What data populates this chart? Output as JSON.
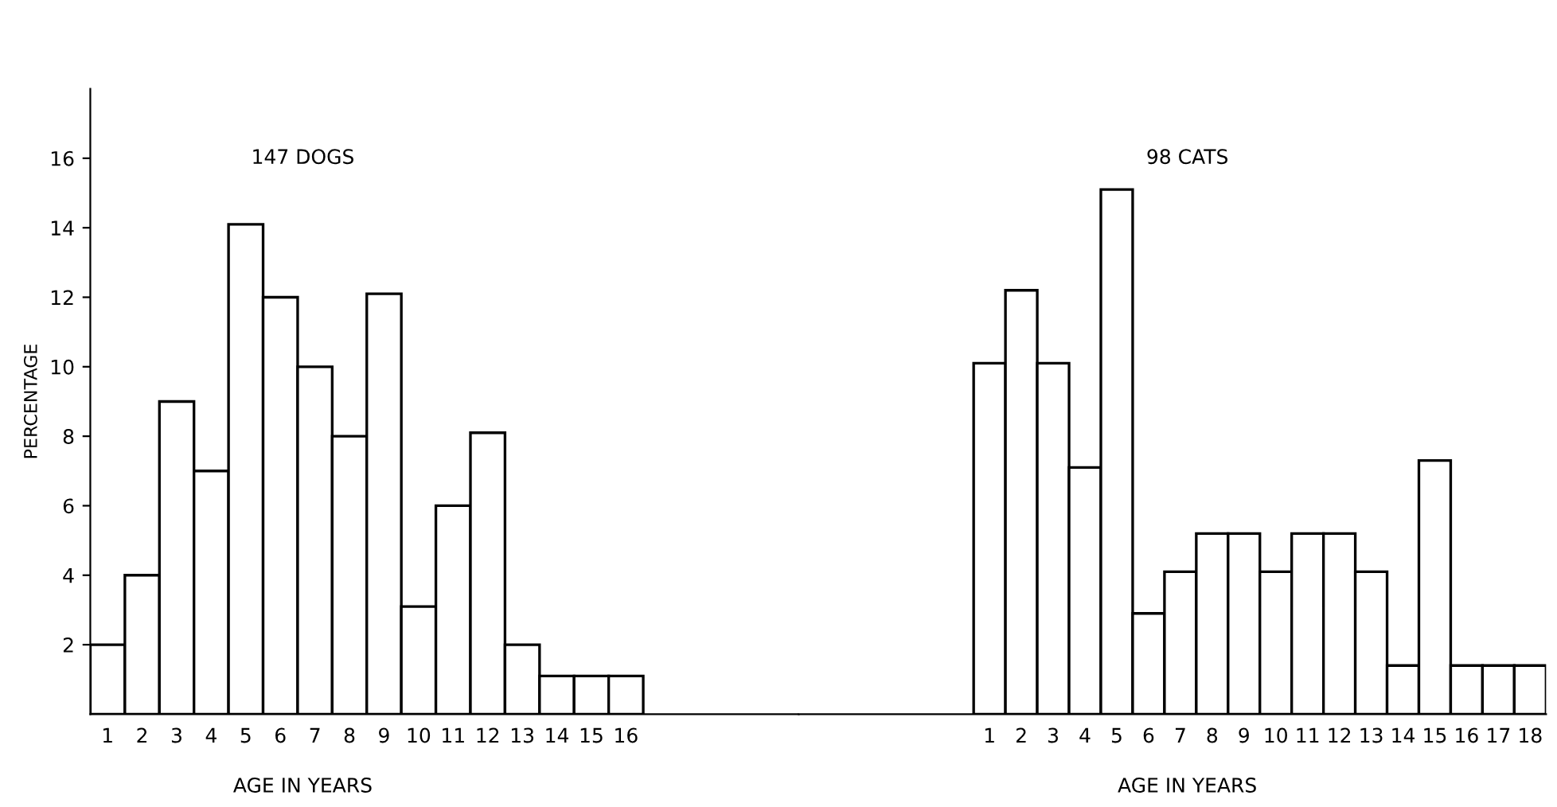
{
  "chart_data": [
    {
      "type": "bar",
      "title": "147 DOGS",
      "xlabel": "AGE IN YEARS",
      "ylabel": "PERCENTAGE",
      "categories": [
        "1",
        "2",
        "3",
        "4",
        "5",
        "6",
        "7",
        "8",
        "9",
        "10",
        "11",
        "12",
        "13",
        "14",
        "15",
        "16"
      ],
      "series": [
        {
          "color": "#ffffff",
          "values": [
            2,
            4,
            9,
            7,
            14.1,
            12,
            10,
            8,
            12.1,
            3.1,
            6,
            8.1,
            2,
            1.1,
            1.1,
            1.1
          ]
        }
      ],
      "ylim": [
        0,
        18
      ],
      "yticks": [
        2,
        4,
        6,
        8,
        10,
        12,
        14,
        16
      ],
      "grid": false,
      "legend": false
    },
    {
      "type": "bar",
      "title": "98 CATS",
      "xlabel": "AGE IN YEARS",
      "categories": [
        "1",
        "2",
        "3",
        "4",
        "5",
        "6",
        "7",
        "8",
        "9",
        "10",
        "11",
        "12",
        "13",
        "14",
        "15",
        "16",
        "17",
        "18"
      ],
      "series": [
        {
          "color": "#ffffff",
          "values": [
            10.1,
            12.2,
            10.1,
            7.1,
            15.1,
            2.9,
            4.1,
            5.2,
            5.2,
            4.1,
            5.2,
            5.2,
            4.1,
            1.4,
            7.3,
            1.4,
            1.4,
            1.4
          ]
        }
      ],
      "ylim": [
        0,
        18
      ],
      "yticks": [
        2,
        4,
        6,
        8,
        10,
        12,
        14,
        16
      ],
      "tick_labels": "x",
      "grid": false,
      "legend": false
    }
  ]
}
